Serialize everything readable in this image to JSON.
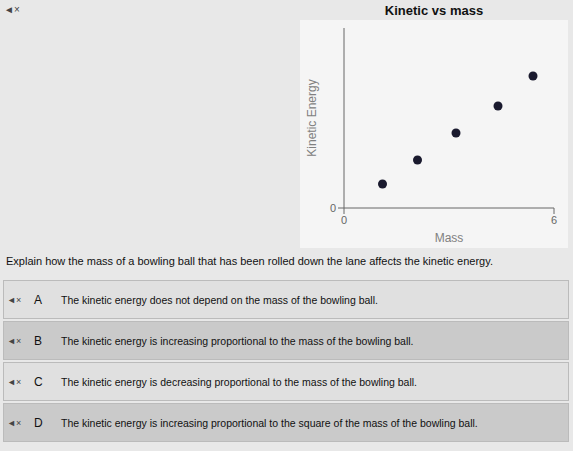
{
  "chart_data": {
    "type": "scatter",
    "title": "Kinetic vs mass",
    "x_label": "Mass",
    "y_label": "Kinetic Energy",
    "x": [
      1.1,
      2.1,
      3.2,
      4.4,
      5.4
    ],
    "values": [
      0.8,
      1.6,
      2.5,
      3.4,
      4.4
    ],
    "color": "#1a1a2e",
    "xlim": [
      0,
      6
    ],
    "ylim": [
      0,
      6
    ],
    "xticks": [
      0,
      6
    ],
    "yticks": [
      0
    ],
    "grid": false,
    "annotations": [
      "◄×",
      "Explain how the mass of a bowling ball that has been rolled down the lane affects the kinetic energy.",
      "◄×",
      "A",
      "The kinetic energy does not depend on the mass of the bowling ball.",
      "◄×",
      "B",
      "The kinetic energy is increasing proportional to the mass of the bowling ball.",
      "◄×",
      "C",
      "The kinetic energy is decreasing proportional to the mass of the bowling ball.",
      "◄×",
      "D",
      "The kinetic energy is increasing proportional to the square of the mass of the bowling ball."
    ]
  }
}
